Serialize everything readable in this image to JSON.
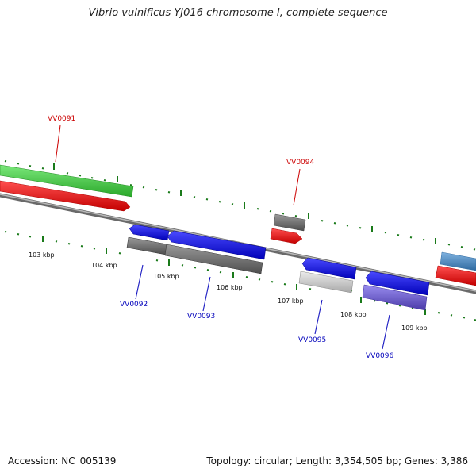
{
  "title": "Vibrio vulnificus YJ016 chromosome I, complete sequence",
  "footer": {
    "accession_label": "Accession:",
    "accession": "NC_005139",
    "topology_label": "Topology:",
    "topology": "circular",
    "length_label": "Length:",
    "length": "3,354,505 bp",
    "genes_label": "Genes:",
    "genes": "3,386"
  },
  "colors": {
    "backbone": "#8a8a8a",
    "tick": "#1a7a1a",
    "label_red": "#cc0000",
    "label_blue": "#0000bb",
    "gene_green": "#3cc43c",
    "gene_red": "#ee0000",
    "gene_blue": "#0000ee",
    "gene_dark_gray": "#6e6e6e",
    "gene_light_gray": "#cfcfcf",
    "gene_purple": "#6a5acd",
    "gene_steelblue": "#4a88c0"
  },
  "scale": {
    "unit": "kbp",
    "labels": [
      "103 kbp",
      "104 kbp",
      "105 kbp",
      "106 kbp",
      "107 kbp",
      "108 kbp",
      "109 kbp"
    ]
  },
  "genes": [
    {
      "id": "VV0091",
      "strand": "+",
      "color": "gene_red",
      "labeled": true
    },
    {
      "id": "VV0092",
      "strand": "-",
      "color": "gene_blue",
      "labeled": true
    },
    {
      "id": "VV0093",
      "strand": "-",
      "color": "gene_blue",
      "labeled": true
    },
    {
      "id": "VV0094",
      "strand": "+",
      "color": "gene_red",
      "labeled": true
    },
    {
      "id": "VV0095",
      "strand": "-",
      "color": "gene_blue",
      "labeled": true
    },
    {
      "id": "VV0096",
      "strand": "-",
      "color": "gene_blue",
      "labeled": true
    },
    {
      "id": "",
      "strand": "+",
      "color": "gene_red",
      "labeled": false
    }
  ],
  "feature_bars": [
    {
      "color": "gene_green",
      "track": "outer-plus"
    },
    {
      "color": "gene_dark_gray",
      "track": "outer-plus"
    },
    {
      "color": "gene_steelblue",
      "track": "outer-plus"
    },
    {
      "color": "gene_dark_gray",
      "track": "outer-minus"
    },
    {
      "color": "gene_dark_gray",
      "track": "outer-minus"
    },
    {
      "color": "gene_light_gray",
      "track": "outer-minus"
    },
    {
      "color": "gene_purple",
      "track": "outer-minus"
    }
  ]
}
